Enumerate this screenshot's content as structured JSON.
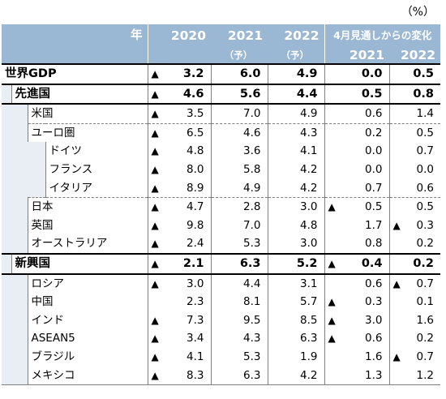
{
  "unit": "（%）",
  "header": {
    "year_label": "年",
    "col_2020": "2020",
    "col_2021": "2021",
    "col_2021_sub": "（予）",
    "col_2022": "2022",
    "col_2022_sub": "（予）",
    "change_label": "4月見通しからの変化",
    "change_2021": "2021",
    "change_2022": "2022"
  },
  "rows": {
    "world": {
      "label": "世界GDP",
      "v2020": "3.2",
      "v2020_neg": "▲",
      "v2021": "6.0",
      "v2022": "4.9",
      "c2021": "0.0",
      "c2022": "0.5"
    },
    "advanced": {
      "label": "先進国",
      "v2020": "4.6",
      "v2020_neg": "▲",
      "v2021": "5.6",
      "v2022": "4.4",
      "c2021": "0.5",
      "c2022": "0.8"
    },
    "us": {
      "label": "米国",
      "v2020": "3.5",
      "v2021": "7.0",
      "v2022": "4.9",
      "c2021": "0.6",
      "c2022": "1.4"
    },
    "euro": {
      "label": "ユーロ圏",
      "v2020": "6.5",
      "v2021": "4.6",
      "v2022": "4.3",
      "c2021": "0.2",
      "c2022": "0.5"
    },
    "germany": {
      "label": "ドイツ",
      "v2020": "4.8",
      "v2021": "3.6",
      "v2022": "4.1",
      "c2021": "0.0",
      "c2022": "0.7"
    },
    "france": {
      "label": "フランス",
      "v2020": "8.0",
      "v2021": "5.8",
      "v2022": "4.2",
      "c2021": "0.0",
      "c2022": "0.0"
    },
    "italy": {
      "label": "イタリア",
      "v2020": "8.9",
      "v2021": "4.9",
      "v2022": "4.2",
      "c2021": "0.7",
      "c2022": "0.6"
    },
    "japan": {
      "label": "日本",
      "v2020": "4.7",
      "v2021": "2.8",
      "v2022": "3.0",
      "c2021": "0.5",
      "c2022": "0.5"
    },
    "uk": {
      "label": "英国",
      "v2020": "9.8",
      "v2021": "7.0",
      "v2022": "4.8",
      "c2021": "1.7",
      "c2022": "0.3"
    },
    "australia": {
      "label": "オーストラリア",
      "v2020": "2.4",
      "v2021": "5.3",
      "v2022": "3.0",
      "c2021": "0.8",
      "c2022": "0.2"
    },
    "emerging": {
      "label": "新興国",
      "v2020": "2.1",
      "v2021": "6.3",
      "v2022": "5.2",
      "c2021": "0.4",
      "c2022": "0.2"
    },
    "russia": {
      "label": "ロシア",
      "v2020": "3.0",
      "v2021": "4.4",
      "v2022": "3.1",
      "c2021": "0.6",
      "c2022": "0.7"
    },
    "china": {
      "label": "中国",
      "v2020": "2.3",
      "v2021": "8.1",
      "v2022": "5.7",
      "c2021": "0.3",
      "c2022": "0.1"
    },
    "india": {
      "label": "インド",
      "v2020": "7.3",
      "v2021": "9.5",
      "v2022": "8.5",
      "c2021": "3.0",
      "c2022": "1.6"
    },
    "asean5": {
      "label": "ASEAN5",
      "v2020": "3.4",
      "v2021": "4.3",
      "v2022": "6.3",
      "c2021": "0.6",
      "c2022": "0.2"
    },
    "brazil": {
      "label": "ブラジル",
      "v2020": "4.1",
      "v2021": "5.3",
      "v2022": "1.9",
      "c2021": "1.6",
      "c2022": "0.7"
    },
    "mexico": {
      "label": "メキシコ",
      "v2020": "8.3",
      "v2021": "6.3",
      "v2022": "4.2",
      "c2021": "1.3",
      "c2022": "1.2"
    }
  },
  "neg_marker": "▲"
}
